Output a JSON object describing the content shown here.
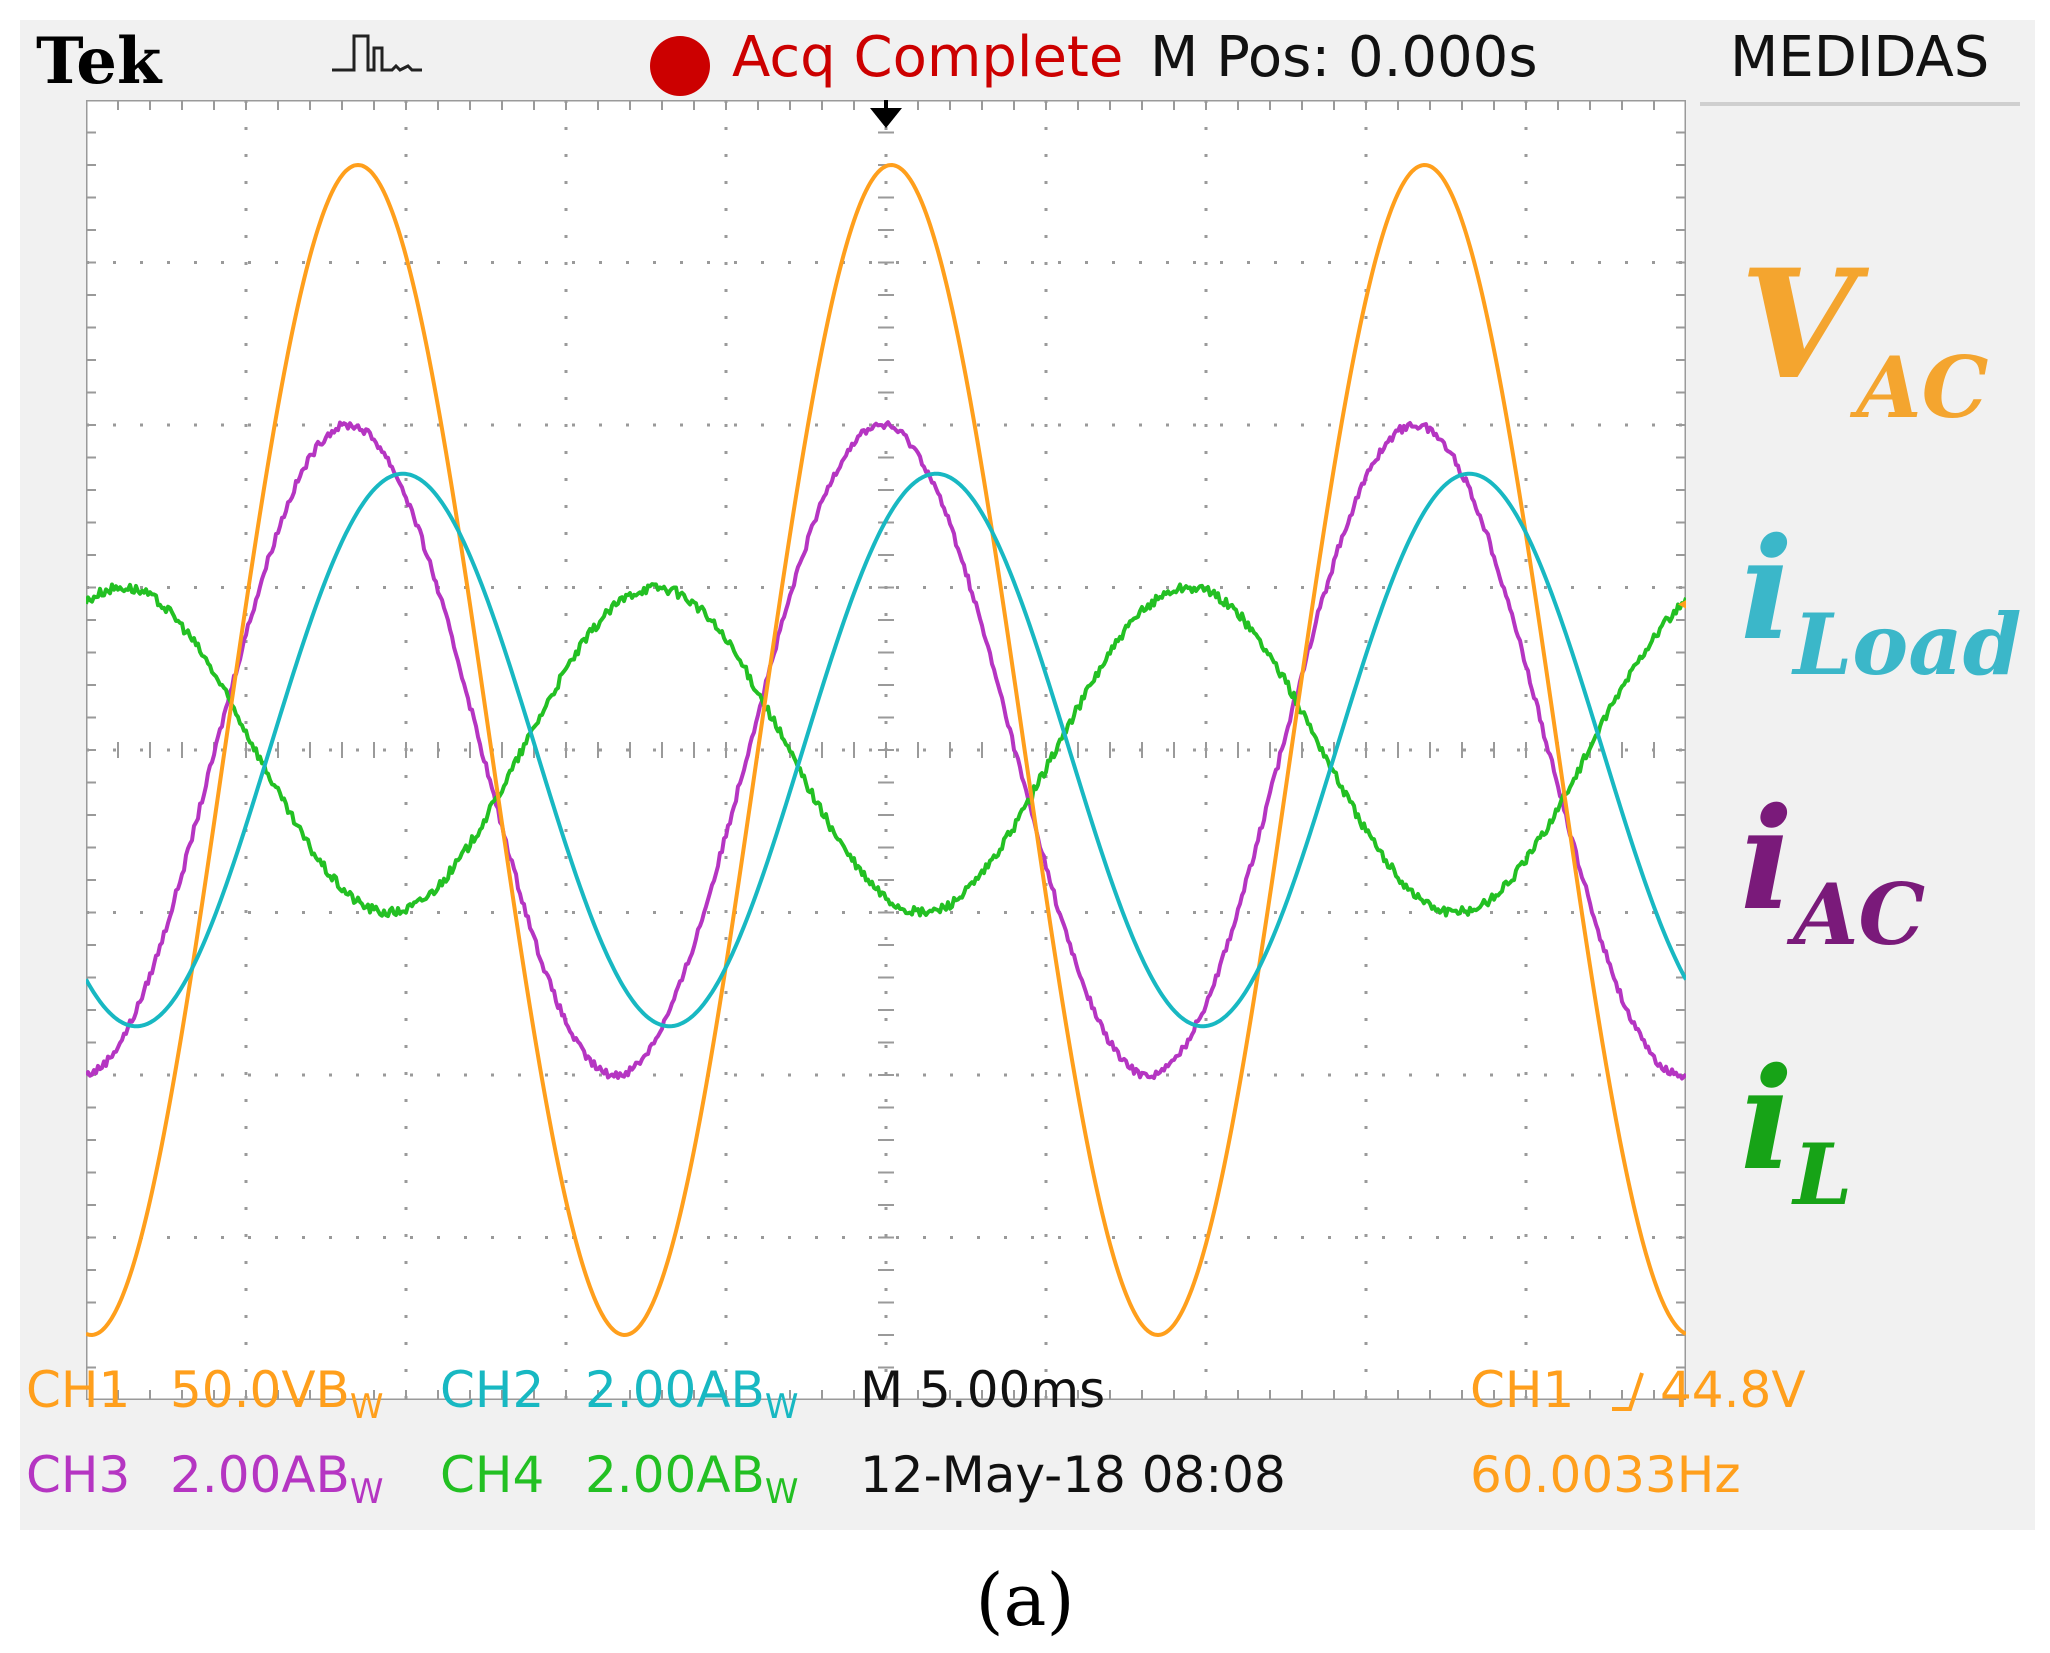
{
  "header": {
    "brand": "Tek",
    "trigger_icon": "pulse-waveform-icon",
    "status_icon": "red-dot-icon",
    "status": "Acq Complete",
    "position": "M Pos: 0.000s",
    "menu_title": "MEDIDAS"
  },
  "footer": {
    "row1": {
      "ch1_name": "CH1",
      "ch1_scale": "50.0V",
      "ch2_name": "CH2",
      "ch2_scale": "2.00A",
      "timebase": "M 5.00ms",
      "trigger_source": "CH1",
      "trigger_level": "44.8V"
    },
    "row2": {
      "ch3_name": "CH3",
      "ch3_scale": "2.00A",
      "ch4_name": "CH4",
      "ch4_scale": "2.00A",
      "datetime": "12-May-18 08:08",
      "frequency": "60.0033Hz"
    },
    "bw_suffix": "B",
    "bw_sub": "W"
  },
  "channel_labels": [
    {
      "main": "V",
      "sub": "AC",
      "color": "#f4a52f"
    },
    {
      "main": "i",
      "sub": "Load",
      "color": "#3bb7c9"
    },
    {
      "main": "i",
      "sub": "AC",
      "color": "#7a1a7a"
    },
    {
      "main": "i",
      "sub": "L",
      "color": "#17a317"
    }
  ],
  "caption": "(a)",
  "colors": {
    "ch1": "#ff9f1c",
    "ch2": "#18b8c2",
    "ch3": "#b535c2",
    "ch4": "#23c023",
    "grid": "#9a9a9a",
    "background": "#ffffff"
  },
  "chart_data": {
    "type": "line",
    "grid": true,
    "x_unit": "ms",
    "x_per_div": 5.0,
    "divisions": {
      "x": 10,
      "y": 8
    },
    "xlim": [
      -25,
      25
    ],
    "ylim_div": [
      -4,
      4
    ],
    "frequency_hz": 60.0033,
    "series": [
      {
        "name": "CH1",
        "unit": "V",
        "volts_per_div": 50.0,
        "amplitude": 180,
        "offset": 0,
        "peak_time_ms": -16.5,
        "noise": 0.0
      },
      {
        "name": "CH2",
        "unit": "A",
        "volts_per_div": 2.0,
        "amplitude": 3.4,
        "offset": 0,
        "peak_time_ms": -15.1,
        "noise": 0.0
      },
      {
        "name": "CH3",
        "unit": "A",
        "volts_per_div": 2.0,
        "amplitude": 4.0,
        "offset": 0,
        "peak_time_ms": -16.8,
        "noise": 0.05
      },
      {
        "name": "CH4",
        "unit": "A",
        "volts_per_div": 2.0,
        "amplitude": 2.0,
        "offset": 0,
        "peak_time_ms": -7.2,
        "noise": 0.06
      }
    ]
  }
}
